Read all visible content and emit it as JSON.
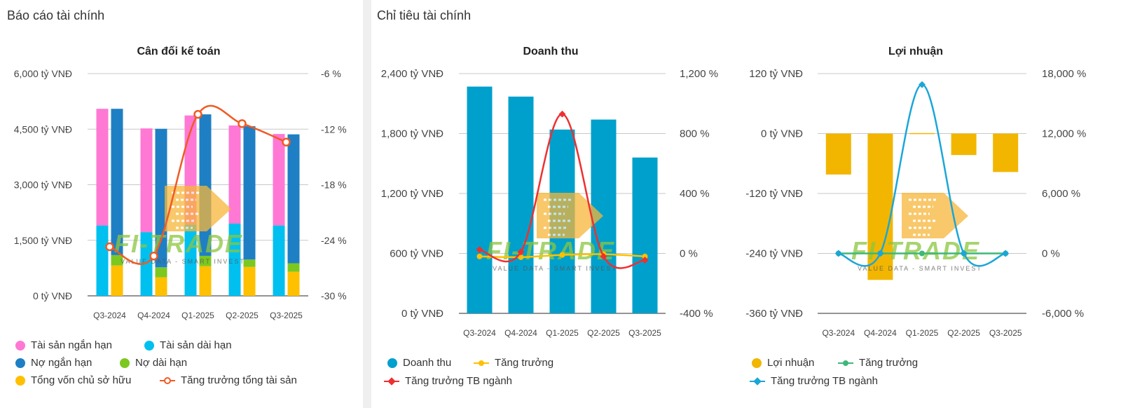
{
  "left_panel": {
    "title": "Báo cáo tài chính"
  },
  "right_panel": {
    "title": "Chỉ tiêu tài chính"
  },
  "watermark": {
    "text": "FI-TRADE",
    "tagline": "VALUE DATA - SMART INVEST"
  },
  "colors": {
    "pink": "#ff78d4",
    "lightblue": "#00c0f0",
    "darkblue": "#1f7fc4",
    "green": "#7cc820",
    "yellow": "#ffc000",
    "orange": "#f05a24",
    "teal": "#00a0cc",
    "red": "#ee3030",
    "gold": "#f2b600",
    "emerald": "#3cb878",
    "cyan": "#1aa6d8"
  },
  "chart_data": [
    {
      "type": "bar",
      "title": "Cân đối kế toán",
      "categories": [
        "Q3-2024",
        "Q4-2024",
        "Q1-2025",
        "Q2-2025",
        "Q3-2025"
      ],
      "y_ticks": [
        "6,000 tỷ VNĐ",
        "4,500 tỷ VNĐ",
        "3,000 tỷ VNĐ",
        "1,500 tỷ VNĐ",
        "0 tỷ VNĐ"
      ],
      "y2_ticks": [
        "-6 %",
        "-12 %",
        "-18 %",
        "-24 %",
        "-30 %"
      ],
      "ylim": [
        0,
        6000
      ],
      "y2lim": [
        -30,
        -6
      ],
      "series": [
        {
          "name": "Tài sản ngắn hạn",
          "stack": "assets",
          "values": [
            3150,
            2800,
            2950,
            2650,
            2470
          ]
        },
        {
          "name": "Tài sản dài hạn",
          "stack": "assets",
          "values": [
            1900,
            1720,
            1920,
            1950,
            1900
          ]
        },
        {
          "name": "Nợ ngắn hạn",
          "stack": "liab",
          "values": [
            3950,
            3740,
            3820,
            3600,
            3480
          ]
        },
        {
          "name": "Nợ dài hạn",
          "stack": "liab",
          "values": [
            280,
            270,
            280,
            200,
            230
          ]
        },
        {
          "name": "Tổng vốn chủ sở hữu",
          "stack": "liab",
          "values": [
            820,
            500,
            800,
            780,
            650
          ]
        },
        {
          "name": "Tăng trưởng tổng tài sản",
          "type": "line",
          "axis": "y2",
          "values": [
            -24.7,
            -25.7,
            -10.4,
            -11.4,
            -13.4
          ]
        }
      ],
      "legend": [
        "Tài sản ngắn hạn",
        "Tài sản dài hạn",
        "Nợ ngắn hạn",
        "Nợ dài hạn",
        "Tổng vốn chủ sở hữu",
        "Tăng trưởng tổng tài sản"
      ]
    },
    {
      "type": "bar",
      "title": "Doanh thu",
      "categories": [
        "Q3-2024",
        "Q4-2024",
        "Q1-2025",
        "Q2-2025",
        "Q3-2025"
      ],
      "y_ticks": [
        "2,400 tỷ VNĐ",
        "1,800 tỷ VNĐ",
        "1,200 tỷ VNĐ",
        "600 tỷ VNĐ",
        "0 tỷ VNĐ"
      ],
      "y2_ticks": [
        "1,200 %",
        "800 %",
        "400 %",
        "0 %",
        "-400 %"
      ],
      "ylim": [
        0,
        2400
      ],
      "y2lim": [
        -400,
        1200
      ],
      "series": [
        {
          "name": "Doanh thu",
          "values": [
            2270,
            2170,
            1840,
            1940,
            1560
          ]
        },
        {
          "name": "Tăng trưởng",
          "type": "line",
          "axis": "y2",
          "values": [
            -20,
            -25,
            -10,
            -5,
            -20
          ]
        },
        {
          "name": "Tăng trưởng TB ngành",
          "type": "line",
          "axis": "y2",
          "values": [
            25,
            10,
            930,
            -20,
            -45
          ]
        }
      ],
      "legend": [
        "Doanh thu",
        "Tăng trưởng",
        "Tăng trưởng TB ngành"
      ]
    },
    {
      "type": "bar",
      "title": "Lợi nhuận",
      "categories": [
        "Q3-2024",
        "Q4-2024",
        "Q1-2025",
        "Q2-2025",
        "Q3-2025"
      ],
      "y_ticks": [
        "120 tỷ VNĐ",
        "0 tỷ VNĐ",
        "-120 tỷ VNĐ",
        "-240 tỷ VNĐ",
        "-360 tỷ VNĐ"
      ],
      "y2_ticks": [
        "18,000 %",
        "12,000 %",
        "6,000 %",
        "0 %",
        "-6,000 %"
      ],
      "ylim": [
        -360,
        120
      ],
      "y2lim": [
        -6000,
        18000
      ],
      "series": [
        {
          "name": "Lợi nhuận",
          "values": [
            -82,
            -293,
            1,
            -43,
            -77
          ]
        },
        {
          "name": "Tăng trưởng",
          "type": "line",
          "axis": "y2",
          "values": [
            0,
            0,
            0,
            0,
            0
          ]
        },
        {
          "name": "Tăng trưởng TB ngành",
          "type": "line",
          "axis": "y2",
          "values": [
            0,
            0,
            16900,
            0,
            0
          ]
        }
      ],
      "legend": [
        "Lợi nhuận",
        "Tăng trưởng",
        "Tăng trưởng TB ngành"
      ]
    }
  ]
}
